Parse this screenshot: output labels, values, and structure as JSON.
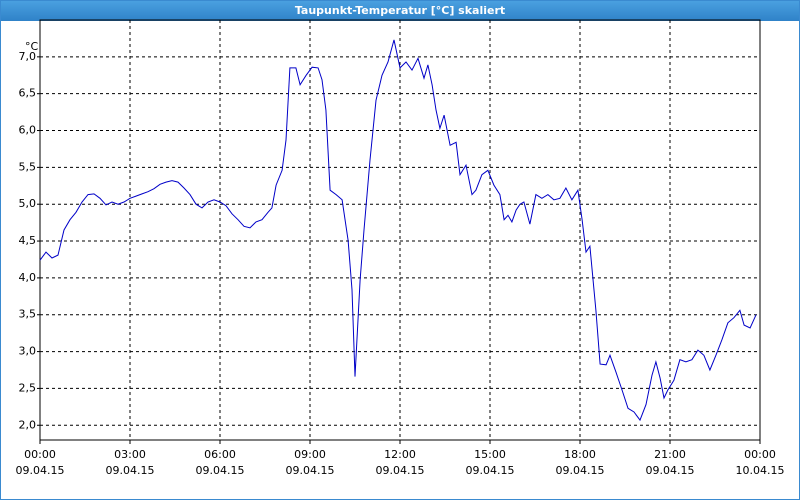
{
  "window_title": "Taupunkt-Temperatur [°C] skaliert",
  "chart_data": {
    "type": "line",
    "y_unit": "°C",
    "color": "#0000c8",
    "grid": true,
    "xlim": [
      0,
      24
    ],
    "xticks": [
      {
        "value": 0,
        "label": "00:00",
        "date": "09.04.15"
      },
      {
        "value": 3,
        "label": "03:00",
        "date": "09.04.15"
      },
      {
        "value": 6,
        "label": "06:00",
        "date": "09.04.15"
      },
      {
        "value": 9,
        "label": "09:00",
        "date": "09.04.15"
      },
      {
        "value": 12,
        "label": "12:00",
        "date": "09.04.15"
      },
      {
        "value": 15,
        "label": "15:00",
        "date": "09.04.15"
      },
      {
        "value": 18,
        "label": "18:00",
        "date": "09.04.15"
      },
      {
        "value": 21,
        "label": "21:00",
        "date": "09.04.15"
      },
      {
        "value": 24,
        "label": "00:00",
        "date": "10.04.15"
      }
    ],
    "ylim": [
      1.8,
      7.5
    ],
    "yticks": [
      {
        "value": 2,
        "label": "2,0"
      },
      {
        "value": 2.5,
        "label": "2,5"
      },
      {
        "value": 3,
        "label": "3,0"
      },
      {
        "value": 3.5,
        "label": "3,5"
      },
      {
        "value": 4,
        "label": "4,0"
      },
      {
        "value": 4.5,
        "label": "4,5"
      },
      {
        "value": 5,
        "label": "5,0"
      },
      {
        "value": 5.5,
        "label": "5,5"
      },
      {
        "value": 6,
        "label": "6,0"
      },
      {
        "value": 6.5,
        "label": "6,5"
      },
      {
        "value": 7,
        "label": "7,0"
      }
    ],
    "x": [
      0,
      0.2,
      0.4,
      0.6,
      0.8,
      1,
      1.2,
      1.4,
      1.6,
      1.8,
      2,
      2.2,
      2.4,
      2.6,
      2.8,
      3,
      3.2,
      3.4,
      3.6,
      3.8,
      4,
      4.2,
      4.4,
      4.6,
      4.8,
      5,
      5.2,
      5.4,
      5.6,
      5.8,
      6,
      6.2,
      6.4,
      6.6,
      6.8,
      7,
      7.2,
      7.4,
      7.6,
      7.73,
      7.87,
      8.07,
      8.2,
      8.33,
      8.53,
      8.67,
      8.87,
      9.07,
      9.27,
      9.4,
      9.53,
      9.67,
      9.87,
      10.07,
      10.27,
      10.4,
      10.5,
      10.67,
      10.8,
      11,
      11.2,
      11.4,
      11.6,
      11.8,
      12,
      12.2,
      12.4,
      12.6,
      12.8,
      12.93,
      13.07,
      13.2,
      13.33,
      13.47,
      13.67,
      13.87,
      14,
      14.2,
      14.4,
      14.53,
      14.73,
      14.93,
      15.13,
      15.33,
      15.47,
      15.6,
      15.73,
      15.87,
      16,
      16.13,
      16.33,
      16.53,
      16.73,
      16.93,
      17.13,
      17.33,
      17.53,
      17.73,
      17.93,
      18.07,
      18.2,
      18.33,
      18.53,
      18.67,
      18.87,
      19,
      19.2,
      19.4,
      19.6,
      19.8,
      20,
      20.2,
      20.4,
      20.53,
      20.67,
      20.8,
      20.93,
      21.13,
      21.33,
      21.53,
      21.73,
      21.93,
      22.13,
      22.33,
      22.53,
      22.73,
      22.93,
      23.13,
      23.33,
      23.47,
      23.67,
      23.87
    ],
    "values": [
      4.24,
      4.35,
      4.27,
      4.31,
      4.65,
      4.79,
      4.89,
      5.03,
      5.13,
      5.14,
      5.08,
      4.99,
      5.03,
      5.0,
      5.03,
      5.08,
      5.11,
      5.14,
      5.17,
      5.21,
      5.27,
      5.3,
      5.32,
      5.3,
      5.22,
      5.13,
      5.0,
      4.95,
      5.03,
      5.06,
      5.03,
      4.98,
      4.87,
      4.79,
      4.7,
      4.68,
      4.76,
      4.79,
      4.89,
      4.95,
      5.26,
      5.46,
      5.87,
      6.85,
      6.85,
      6.62,
      6.75,
      6.86,
      6.85,
      6.69,
      6.28,
      5.19,
      5.13,
      5.06,
      4.51,
      3.84,
      2.66,
      3.97,
      4.65,
      5.6,
      6.41,
      6.75,
      6.93,
      7.23,
      6.85,
      6.93,
      6.82,
      6.98,
      6.71,
      6.89,
      6.62,
      6.28,
      6.03,
      6.21,
      5.8,
      5.84,
      5.4,
      5.53,
      5.13,
      5.19,
      5.4,
      5.46,
      5.26,
      5.13,
      4.79,
      4.85,
      4.76,
      4.92,
      5.0,
      5.03,
      4.73,
      5.13,
      5.08,
      5.13,
      5.06,
      5.08,
      5.22,
      5.06,
      5.19,
      4.79,
      4.35,
      4.43,
      3.56,
      2.83,
      2.82,
      2.95,
      2.72,
      2.48,
      2.23,
      2.18,
      2.07,
      2.28,
      2.68,
      2.86,
      2.64,
      2.37,
      2.48,
      2.61,
      2.89,
      2.86,
      2.89,
      3.02,
      2.95,
      2.75,
      2.95,
      3.16,
      3.39,
      3.46,
      3.56,
      3.36,
      3.32,
      3.5
    ]
  }
}
